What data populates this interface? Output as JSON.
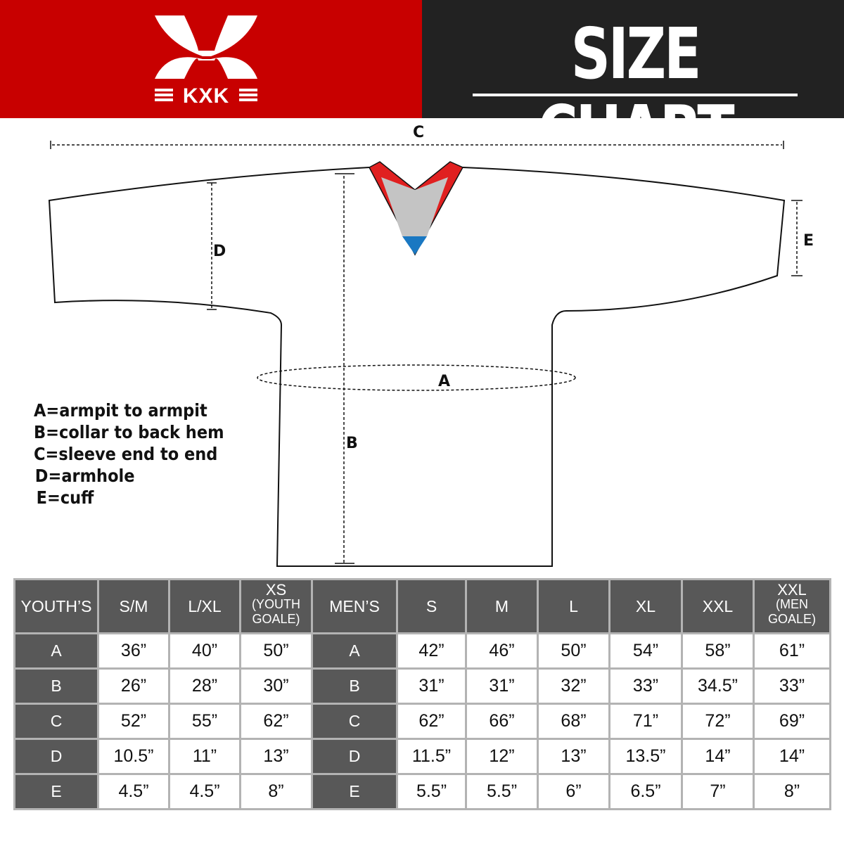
{
  "brand": {
    "logo_text": "KXK",
    "color_red": "#c80000",
    "color_dark": "#222222"
  },
  "header": {
    "title": "SIZE CHART"
  },
  "diagram": {
    "labels": {
      "a": "A",
      "b": "B",
      "c": "C",
      "d": "D",
      "e": "E"
    }
  },
  "legend": [
    "A=armpit to armpit",
    "B=collar to back hem",
    "C=sleeve end to end",
    "D=armhole",
    "E=cuff"
  ],
  "table": {
    "header": [
      {
        "main": "YOUTH’S"
      },
      {
        "main": "S/M"
      },
      {
        "main": "L/XL"
      },
      {
        "main": "XS",
        "sub1": "(YOUTH",
        "sub2": "GOALE)"
      },
      {
        "main": "MEN’S"
      },
      {
        "main": "S"
      },
      {
        "main": "M"
      },
      {
        "main": "L"
      },
      {
        "main": "XL"
      },
      {
        "main": "XXL"
      },
      {
        "main": "XXL",
        "sub1": "(MEN",
        "sub2": "GOALE)"
      }
    ],
    "rows": [
      {
        "youth_label": "A",
        "youth": [
          "36”",
          "40”",
          "50”"
        ],
        "men_label": "A",
        "men": [
          "42”",
          "46”",
          "50”",
          "54”",
          "58”",
          "61”"
        ]
      },
      {
        "youth_label": "B",
        "youth": [
          "26”",
          "28”",
          "30”"
        ],
        "men_label": "B",
        "men": [
          "31”",
          "31”",
          "32”",
          "33”",
          "34.5”",
          "33”"
        ]
      },
      {
        "youth_label": "C",
        "youth": [
          "52”",
          "55”",
          "62”"
        ],
        "men_label": "C",
        "men": [
          "62”",
          "66”",
          "68”",
          "71”",
          "72”",
          "69”"
        ]
      },
      {
        "youth_label": "D",
        "youth": [
          "10.5”",
          "11”",
          "13”"
        ],
        "men_label": "D",
        "men": [
          "11.5”",
          "12”",
          "13”",
          "13.5”",
          "14”",
          "14”"
        ]
      },
      {
        "youth_label": "E",
        "youth": [
          "4.5”",
          "4.5”",
          "8”"
        ],
        "men_label": "E",
        "men": [
          "5.5”",
          "5.5”",
          "6”",
          "6.5”",
          "7”",
          "8”"
        ]
      }
    ]
  }
}
